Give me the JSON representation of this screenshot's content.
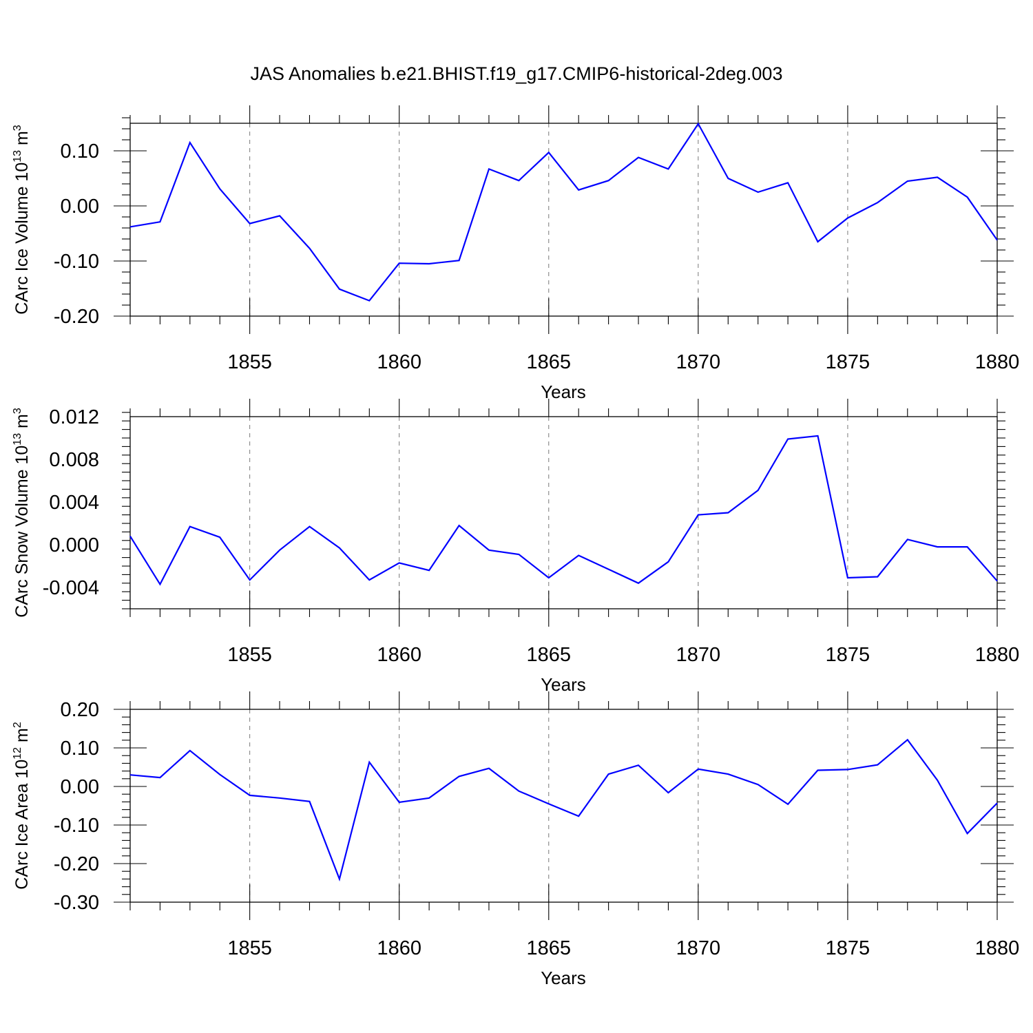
{
  "title": "JAS Anomalies b.e21.BHIST.f19_g17.CMIP6-historical-2deg.003",
  "colors": {
    "line": "#0000ff",
    "axes": "#000000",
    "grid": "#777777"
  },
  "chart_data": [
    {
      "type": "line",
      "ylabel": {
        "prefix": "CArc Ice Volume 10",
        "exponent": "13",
        "unit": " m",
        "unit_exponent": "3"
      },
      "xlabel": "Years",
      "xlim": [
        1851,
        1880
      ],
      "ylim": [
        -0.2,
        0.15
      ],
      "yticks": [
        -0.2,
        -0.1,
        0.0,
        0.1
      ],
      "ytick_labels": [
        "-0.20",
        "-0.10",
        "0.00",
        "0.10"
      ],
      "xticks": [
        1855,
        1860,
        1865,
        1870,
        1875,
        1880
      ],
      "xtick_labels": [
        "1855",
        "1860",
        "1865",
        "1870",
        "1875",
        "1880"
      ],
      "grid": "vertical dashed at major x ticks",
      "x": [
        1851,
        1852,
        1853,
        1854,
        1855,
        1856,
        1857,
        1858,
        1859,
        1860,
        1861,
        1862,
        1863,
        1864,
        1865,
        1866,
        1867,
        1868,
        1869,
        1870,
        1871,
        1872,
        1873,
        1874,
        1875,
        1876,
        1877,
        1878,
        1879,
        1880
      ],
      "y": [
        -0.038,
        -0.029,
        0.115,
        0.031,
        -0.032,
        -0.018,
        -0.077,
        -0.151,
        -0.172,
        -0.104,
        -0.105,
        -0.099,
        0.067,
        0.046,
        0.097,
        0.029,
        0.046,
        0.088,
        0.067,
        0.149,
        0.05,
        0.025,
        0.042,
        -0.065,
        -0.022,
        0.006,
        0.045,
        0.052,
        0.016,
        -0.062
      ]
    },
    {
      "type": "line",
      "ylabel": {
        "prefix": "CArc Snow Volume 10",
        "exponent": "13",
        "unit": " m",
        "unit_exponent": "3"
      },
      "xlabel": "Years",
      "xlim": [
        1851,
        1880
      ],
      "ylim": [
        -0.006,
        0.012
      ],
      "yticks": [
        -0.004,
        0.0,
        0.004,
        0.008,
        0.012
      ],
      "ytick_labels": [
        "-0.004",
        "0.000",
        "0.004",
        "0.008",
        "0.012"
      ],
      "xticks": [
        1855,
        1860,
        1865,
        1870,
        1875,
        1880
      ],
      "xtick_labels": [
        "1855",
        "1860",
        "1865",
        "1870",
        "1875",
        "1880"
      ],
      "grid": "vertical dashed at major x ticks",
      "x": [
        1851,
        1852,
        1853,
        1854,
        1855,
        1856,
        1857,
        1858,
        1859,
        1860,
        1861,
        1862,
        1863,
        1864,
        1865,
        1866,
        1867,
        1868,
        1869,
        1870,
        1871,
        1872,
        1873,
        1874,
        1875,
        1876,
        1877,
        1878,
        1879,
        1880
      ],
      "y": [
        0.0008,
        -0.0037,
        0.0017,
        0.0007,
        -0.0033,
        -0.0005,
        0.0017,
        -0.0003,
        -0.0033,
        -0.0017,
        -0.0024,
        0.0018,
        -0.0005,
        -0.0009,
        -0.0031,
        -0.001,
        -0.0023,
        -0.0036,
        -0.0016,
        0.0028,
        0.003,
        0.0051,
        0.0099,
        0.0102,
        -0.0031,
        -0.003,
        0.0005,
        -0.0002,
        -0.0002,
        -0.0034
      ]
    },
    {
      "type": "line",
      "ylabel": {
        "prefix": "CArc Ice Area 10",
        "exponent": "12",
        "unit": " m",
        "unit_exponent": "2"
      },
      "xlabel": "Years",
      "xlim": [
        1851,
        1880
      ],
      "ylim": [
        -0.3,
        0.2
      ],
      "yticks": [
        -0.3,
        -0.2,
        -0.1,
        0.0,
        0.1,
        0.2
      ],
      "ytick_labels": [
        "-0.30",
        "-0.20",
        "-0.10",
        "0.00",
        "0.10",
        "0.20"
      ],
      "xticks": [
        1855,
        1860,
        1865,
        1870,
        1875,
        1880
      ],
      "xtick_labels": [
        "1855",
        "1860",
        "1865",
        "1870",
        "1875",
        "1880"
      ],
      "grid": "vertical dashed at major x ticks",
      "x": [
        1851,
        1852,
        1853,
        1854,
        1855,
        1856,
        1857,
        1858,
        1859,
        1860,
        1861,
        1862,
        1863,
        1864,
        1865,
        1866,
        1867,
        1868,
        1869,
        1870,
        1871,
        1872,
        1873,
        1874,
        1875,
        1876,
        1877,
        1878,
        1879,
        1880
      ],
      "y": [
        0.03,
        0.023,
        0.093,
        0.031,
        -0.023,
        -0.03,
        -0.039,
        -0.24,
        0.063,
        -0.041,
        -0.03,
        0.026,
        0.047,
        -0.012,
        -0.045,
        -0.077,
        0.032,
        0.055,
        -0.016,
        0.045,
        0.032,
        0.005,
        -0.046,
        0.042,
        0.044,
        0.056,
        0.121,
        0.016,
        -0.122,
        -0.043
      ]
    }
  ]
}
